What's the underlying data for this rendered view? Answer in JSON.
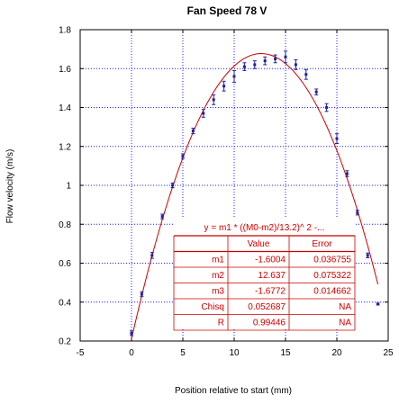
{
  "chart_data": {
    "type": "scatter",
    "title": "Fan Speed 78 V",
    "xlabel": "Position relative to start (mm)",
    "ylabel": "Flow velocity (m/s)",
    "xlim": [
      -5,
      25
    ],
    "ylim": [
      0.2,
      1.8
    ],
    "x_ticks": [
      "-5",
      "0",
      "5",
      "10",
      "15",
      "20",
      "25"
    ],
    "y_ticks": [
      "0.2",
      "0.4",
      "0.6",
      "0.8",
      "1",
      "1.2",
      "1.4",
      "1.6",
      "1.8"
    ],
    "grid": true,
    "colors": {
      "points": "#2020a0",
      "fit": "#cc0000",
      "grid": "#2020ff",
      "table": "#cc0000"
    },
    "series": [
      {
        "type": "scatter-errorbars",
        "x": [
          0,
          1,
          2,
          3,
          4,
          5,
          6,
          7,
          8,
          9,
          10,
          11,
          12,
          13,
          14,
          15,
          16,
          17,
          18,
          19,
          20,
          21,
          22,
          23,
          24
        ],
        "y": [
          0.24,
          0.44,
          0.64,
          0.84,
          1.0,
          1.15,
          1.28,
          1.37,
          1.44,
          1.51,
          1.56,
          1.61,
          1.62,
          1.64,
          1.65,
          1.66,
          1.62,
          1.57,
          1.48,
          1.4,
          1.24,
          1.06,
          0.86,
          0.64,
          0.39
        ],
        "err": [
          0.012,
          0.012,
          0.015,
          0.012,
          0.012,
          0.012,
          0.014,
          0.02,
          0.025,
          0.025,
          0.03,
          0.02,
          0.02,
          0.02,
          0.02,
          0.03,
          0.025,
          0.025,
          0.015,
          0.02,
          0.025,
          0.015,
          0.012,
          0.012,
          0.005
        ]
      },
      {
        "type": "fit-curve",
        "x_range": [
          0,
          24
        ],
        "m1": -1.6004,
        "m2": 12.637,
        "m3": -1.6772
      }
    ],
    "fit_table": {
      "equation": "y = m1 * ((M0-m2)/13.2)^ 2 -...",
      "headers": [
        "",
        "Value",
        "Error"
      ],
      "rows": [
        [
          "m1",
          "-1.6004",
          "0.036755"
        ],
        [
          "m2",
          "12.637",
          "0.075322"
        ],
        [
          "m3",
          "-1.6772",
          "0.014662"
        ],
        [
          "Chisq",
          "0.052687",
          "NA"
        ],
        [
          "R",
          "0.99446",
          "NA"
        ]
      ]
    }
  }
}
